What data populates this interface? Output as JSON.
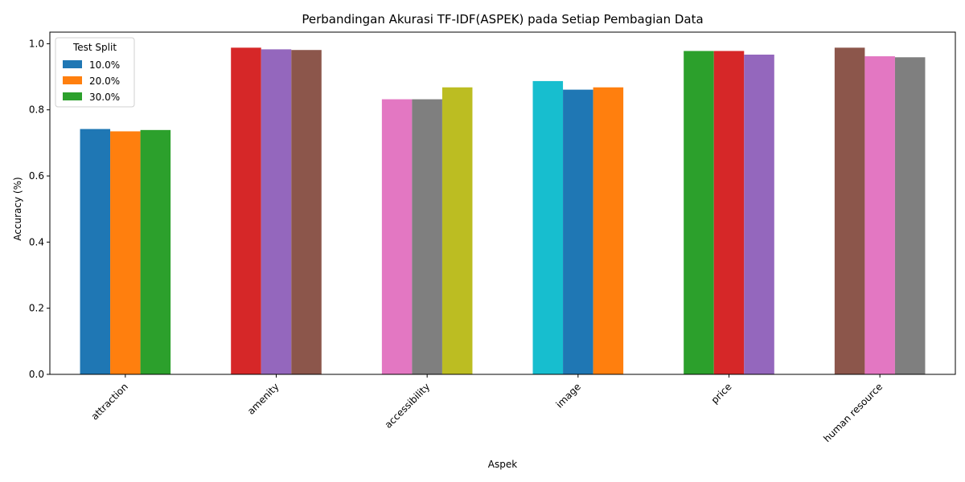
{
  "chart_data": {
    "type": "bar",
    "title": "Perbandingan Akurasi TF-IDF(ASPEK) pada Setiap Pembagian Data",
    "xlabel": "Aspek",
    "ylabel": "Accuracy (%)",
    "ylim": [
      0,
      1.035
    ],
    "yticks": [
      "0.0",
      "0.2",
      "0.4",
      "0.6",
      "0.8",
      "1.0"
    ],
    "grid": false,
    "legend": {
      "title": "Test Split",
      "placement": "top-left"
    },
    "categories": [
      "attraction",
      "amenity",
      "accessibility",
      "image",
      "price",
      "human resource"
    ],
    "series": [
      {
        "name": "10.0%",
        "values": [
          0.742,
          0.988,
          0.832,
          0.887,
          0.978,
          0.988
        ]
      },
      {
        "name": "20.0%",
        "values": [
          0.735,
          0.983,
          0.832,
          0.861,
          0.978,
          0.962
        ]
      },
      {
        "name": "30.0%",
        "values": [
          0.739,
          0.981,
          0.868,
          0.868,
          0.967,
          0.959
        ]
      }
    ],
    "bar_colors": [
      [
        "#1f77b4",
        "#ff7f0e",
        "#2ca02c"
      ],
      [
        "#d62728",
        "#9467bd",
        "#8c564b"
      ],
      [
        "#e377c2",
        "#7f7f7f",
        "#bcbd22"
      ],
      [
        "#17becf",
        "#1f77b4",
        "#ff7f0e"
      ],
      [
        "#2ca02c",
        "#d62728",
        "#9467bd"
      ],
      [
        "#8c564b",
        "#e377c2",
        "#7f7f7f"
      ]
    ],
    "legend_colors": [
      "#1f77b4",
      "#ff7f0e",
      "#2ca02c"
    ]
  }
}
